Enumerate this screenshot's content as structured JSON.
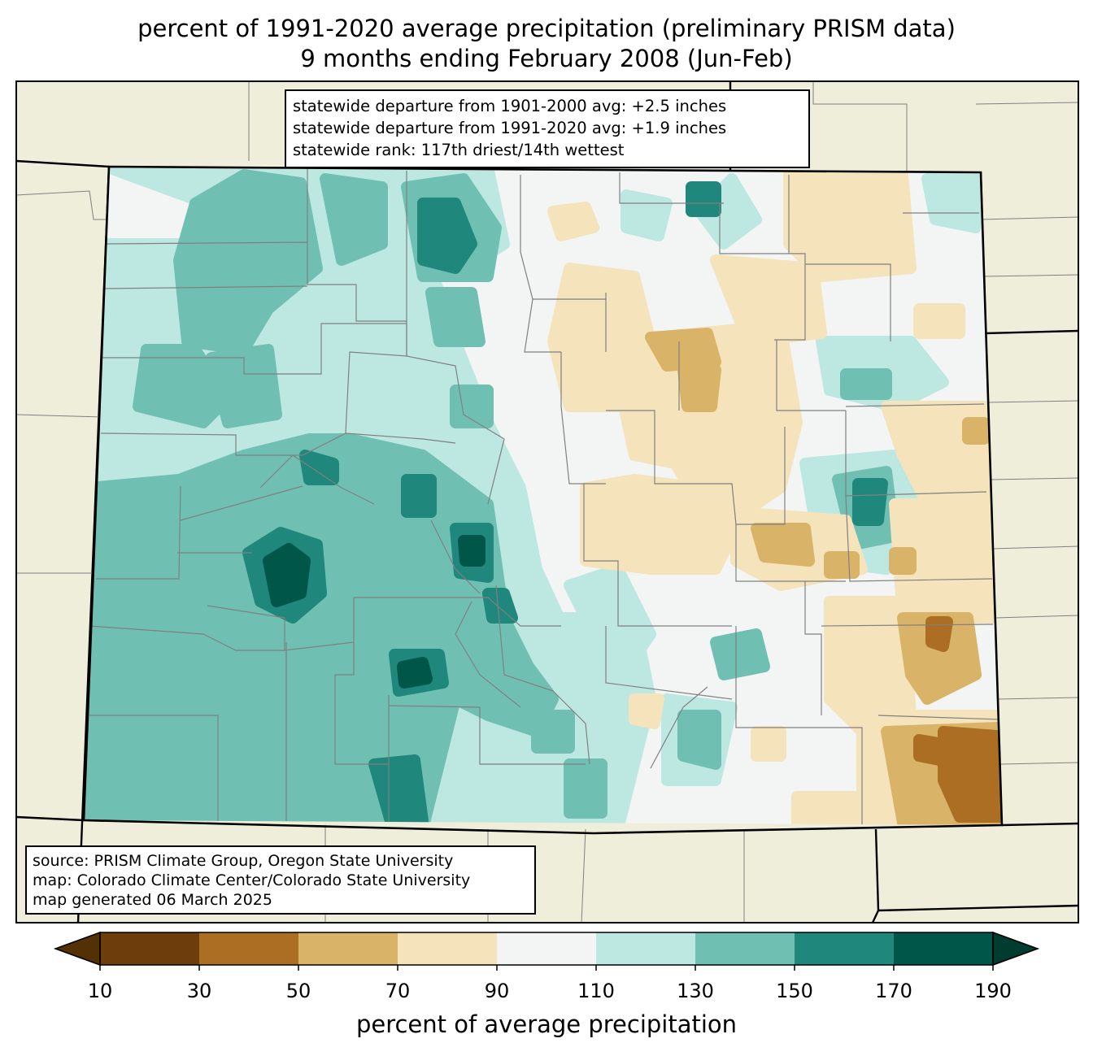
{
  "title": {
    "line1": "percent of 1991-2020 average precipitation (preliminary PRISM data)",
    "line2": "9 months ending February 2008 (Jun-Feb)"
  },
  "stats_box": {
    "lines": [
      "statewide departure from 1901-2000 avg: +2.5 inches",
      "statewide departure from 1991-2020 avg: +1.9 inches",
      "statewide rank: 117th driest/14th wettest"
    ]
  },
  "source_box": {
    "lines": [
      "source: PRISM Climate Group, Oregon State University",
      "map: Colorado Climate Center/Colorado State University",
      "map generated 06 March 2025"
    ]
  },
  "colorbar": {
    "label": "percent of average precipitation",
    "ticks": [
      "10",
      "30",
      "50",
      "70",
      "90",
      "110",
      "130",
      "150",
      "170",
      "190"
    ],
    "colors": [
      "#6e3d0c",
      "#ab6e22",
      "#d8b368",
      "#f4e3bb",
      "#f3f5f4",
      "#bde7e1",
      "#6fc0b3",
      "#1f877c",
      "#01564a"
    ],
    "under_color": "#543005",
    "over_color": "#003c30"
  },
  "map_colors": {
    "land": "#efeedb",
    "state_border": "#000000",
    "county_border": "#808080"
  }
}
